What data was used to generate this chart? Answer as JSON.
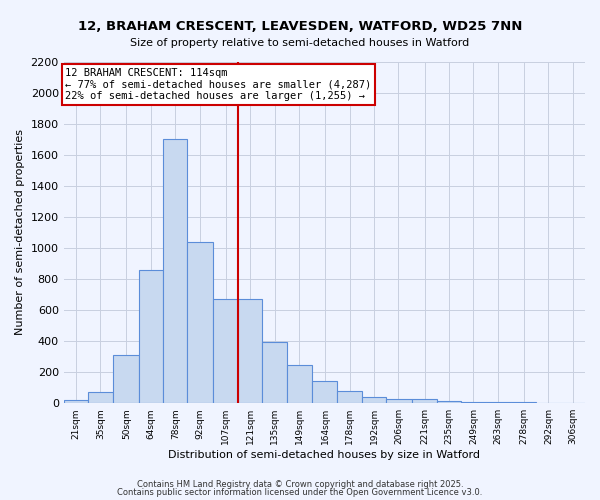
{
  "title": "12, BRAHAM CRESCENT, LEAVESDEN, WATFORD, WD25 7NN",
  "subtitle": "Size of property relative to semi-detached houses in Watford",
  "xlabel": "Distribution of semi-detached houses by size in Watford",
  "ylabel": "Number of semi-detached properties",
  "bar_color": "#c8d9f0",
  "bar_edge_color": "#5b8dd9",
  "grid_color": "#c8cfe0",
  "marker_color": "#cc0000",
  "annotation_title": "12 BRAHAM CRESCENT: 114sqm",
  "annotation_line1": "← 77% of semi-detached houses are smaller (4,287)",
  "annotation_line2": "22% of semi-detached houses are larger (1,255) →",
  "annotation_box_color": "#ffffff",
  "annotation_border_color": "#cc0000",
  "bin_centers": [
    21,
    35,
    50,
    64,
    78,
    92,
    107,
    121,
    135,
    149,
    164,
    178,
    192,
    206,
    221,
    235,
    249,
    263,
    278,
    292,
    306
  ],
  "bin_labels": [
    "21sqm",
    "35sqm",
    "50sqm",
    "64sqm",
    "78sqm",
    "92sqm",
    "107sqm",
    "121sqm",
    "135sqm",
    "149sqm",
    "164sqm",
    "178sqm",
    "192sqm",
    "206sqm",
    "221sqm",
    "235sqm",
    "249sqm",
    "263sqm",
    "278sqm",
    "292sqm",
    "306sqm"
  ],
  "counts": [
    20,
    70,
    310,
    860,
    1700,
    1040,
    670,
    670,
    395,
    245,
    140,
    80,
    40,
    30,
    25,
    15,
    8,
    5,
    5,
    3,
    2
  ],
  "marker_bin_index": 7,
  "ylim": [
    0,
    2200
  ],
  "yticks": [
    0,
    200,
    400,
    600,
    800,
    1000,
    1200,
    1400,
    1600,
    1800,
    2000,
    2200
  ],
  "footer1": "Contains HM Land Registry data © Crown copyright and database right 2025.",
  "footer2": "Contains public sector information licensed under the Open Government Licence v3.0.",
  "bg_color": "#f0f4ff"
}
